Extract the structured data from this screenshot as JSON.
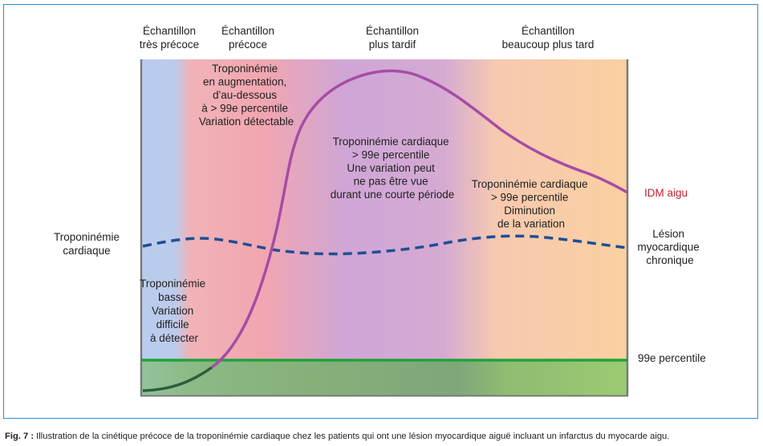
{
  "headers": [
    {
      "lines": [
        "Échantillon",
        "très précoce"
      ]
    },
    {
      "lines": [
        "Échantillon",
        "précoce"
      ]
    },
    {
      "lines": [
        "Échantillon",
        "plus tardif"
      ]
    },
    {
      "lines": [
        "Échantillon",
        "beaucoup plus tard"
      ]
    }
  ],
  "y_label": [
    "Troponinémie",
    "cardiaque"
  ],
  "annotations": {
    "low": [
      "Troponinémie",
      "basse",
      "Variation",
      "difficile",
      "à détecter"
    ],
    "rising": [
      "Troponinémie",
      "en augmentation,",
      "d'au-dessous",
      "à > 99e percentile",
      "Variation détectable"
    ],
    "peak": [
      "Troponinémie cardiaque",
      "> 99e percentile",
      "Une variation peut",
      "ne pas être vue",
      "durant une courte période"
    ],
    "falling": [
      "Troponinémie cardiaque",
      "> 99e percentile",
      "Diminution",
      "de la variation"
    ]
  },
  "series_labels": {
    "acute": "IDM aigu",
    "chronic": [
      "Lésion",
      "myocardique",
      "chronique"
    ],
    "threshold": "99e percentile"
  },
  "colors": {
    "acute_line": "#a64ca6",
    "acute_label": "#c0202e",
    "chronic_line": "#1f4e96",
    "threshold_line": "#1fa33a",
    "frame": "#2a8fcf"
  },
  "caption": {
    "label": "Fig. 7 :",
    "text": "Illustration de la cinétique précoce de la troponinémie cardiaque chez les patients qui ont une lésion myocardique aiguë incluant un infarctus du myocarde aigu."
  }
}
